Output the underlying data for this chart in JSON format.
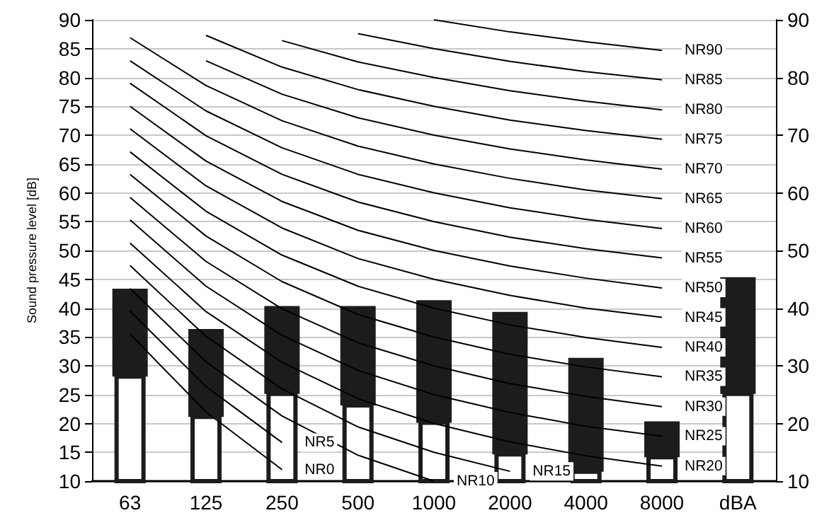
{
  "chart_data": {
    "type": "bar",
    "ylabel": "Sound pressure level [dB]",
    "categories": [
      "63",
      "125",
      "250",
      "500",
      "1000",
      "2000",
      "4000",
      "8000",
      "dBA"
    ],
    "ylim": [
      10,
      90
    ],
    "yticks": [
      10,
      15,
      20,
      25,
      30,
      35,
      40,
      45,
      50,
      55,
      60,
      65,
      70,
      75,
      80,
      85,
      90
    ],
    "y2lim": [
      10,
      90
    ],
    "y2ticks": [
      10,
      20,
      30,
      40,
      50,
      60,
      70,
      80,
      90
    ],
    "grid": "y",
    "marker": "none",
    "series": [
      {
        "color": "#ffffff",
        "values": [
          28.5,
          21.5,
          25.5,
          23.5,
          20.5,
          15,
          12,
          14.5,
          25.5
        ]
      },
      {
        "color": "#1c1c1c",
        "base": [
          28.5,
          21.5,
          25.5,
          23.5,
          20.5,
          15,
          12,
          14.5,
          25.5
        ],
        "values": [
          14.5,
          14.5,
          14.5,
          16.5,
          20.5,
          24,
          19,
          5.5,
          19.5
        ]
      },
      {
        "name": "NR0",
        "type": "line",
        "color": "#000000",
        "values": [
          35.5,
          22,
          12,
          null,
          null,
          null,
          null,
          null,
          null
        ]
      },
      {
        "name": "NR5",
        "type": "line",
        "color": "#000000",
        "values": [
          39.5,
          26.4,
          16.7,
          null,
          null,
          null,
          null,
          null,
          null
        ]
      },
      {
        "name": "NR10",
        "type": "line",
        "color": "#000000",
        "values": [
          43.4,
          30.7,
          21.3,
          14.5,
          10,
          null,
          null,
          null,
          null
        ]
      },
      {
        "name": "NR15",
        "type": "line",
        "color": "#000000",
        "values": [
          47.4,
          35.1,
          26,
          19.4,
          15,
          11.7,
          null,
          null,
          null
        ]
      },
      {
        "name": "NR20",
        "type": "line",
        "color": "#000000",
        "values": [
          51.3,
          39.4,
          30.6,
          24.3,
          20,
          16.8,
          14.4,
          12.6,
          null
        ]
      },
      {
        "name": "NR25",
        "type": "line",
        "color": "#000000",
        "values": [
          55.3,
          43.8,
          35.3,
          29.2,
          25,
          21.9,
          19.5,
          17.8,
          null
        ]
      },
      {
        "name": "NR30",
        "type": "line",
        "color": "#000000",
        "values": [
          59.2,
          48.1,
          39.9,
          34,
          30,
          26.9,
          24.7,
          22.9,
          null
        ]
      },
      {
        "name": "NR35",
        "type": "line",
        "color": "#000000",
        "values": [
          63.2,
          52.5,
          44.6,
          38.9,
          35,
          32,
          29.8,
          28.1,
          null
        ]
      },
      {
        "name": "NR40",
        "type": "line",
        "color": "#000000",
        "values": [
          67.1,
          56.8,
          49.2,
          43.8,
          40,
          37.1,
          34.9,
          33.2,
          null
        ]
      },
      {
        "name": "NR45",
        "type": "line",
        "color": "#000000",
        "values": [
          71.1,
          61.2,
          53.9,
          48.6,
          45,
          42.2,
          40,
          38.4,
          null
        ]
      },
      {
        "name": "NR50",
        "type": "line",
        "color": "#000000",
        "values": [
          75,
          65.5,
          58.5,
          53.5,
          50,
          47.3,
          45.2,
          43.5,
          null
        ]
      },
      {
        "name": "NR55",
        "type": "line",
        "color": "#000000",
        "values": [
          79,
          69.9,
          63.2,
          58.4,
          55,
          52.3,
          50.3,
          48.7,
          null
        ]
      },
      {
        "name": "NR60",
        "type": "line",
        "color": "#000000",
        "values": [
          82.9,
          74.2,
          67.8,
          63.2,
          60,
          57.4,
          55.4,
          53.8,
          null
        ]
      },
      {
        "name": "NR65",
        "type": "line",
        "color": "#000000",
        "values": [
          86.9,
          78.6,
          72.5,
          68.1,
          65,
          62.5,
          60.5,
          59,
          null
        ]
      },
      {
        "name": "NR70",
        "type": "line",
        "color": "#000000",
        "values": [
          null,
          82.9,
          77.1,
          73,
          70,
          67.6,
          65.7,
          64.1,
          null
        ]
      },
      {
        "name": "NR75",
        "type": "line",
        "color": "#000000",
        "values": [
          null,
          87.3,
          81.8,
          77.9,
          75,
          72.6,
          70.8,
          69.3,
          null
        ]
      },
      {
        "name": "NR80",
        "type": "line",
        "color": "#000000",
        "values": [
          null,
          null,
          86.4,
          82.7,
          80,
          77.7,
          75.9,
          74.4,
          null
        ]
      },
      {
        "name": "NR85",
        "type": "line",
        "color": "#000000",
        "values": [
          null,
          null,
          null,
          87.6,
          85,
          82.8,
          81,
          79.6,
          null
        ]
      },
      {
        "name": "NR90",
        "type": "line",
        "color": "#000000",
        "values": [
          null,
          null,
          null,
          null,
          90,
          87.9,
          86.2,
          84.7,
          null
        ]
      }
    ]
  }
}
